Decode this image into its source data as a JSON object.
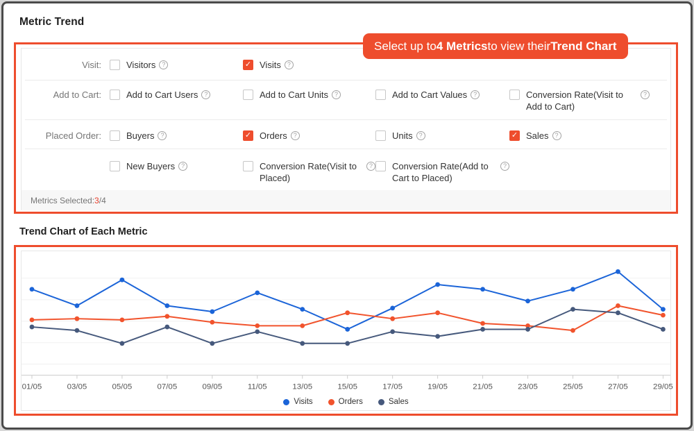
{
  "page": {
    "title": "Metric Trend",
    "chart_title": "Trend Chart of Each Metric"
  },
  "callout": {
    "segments": [
      {
        "text": "Select up to ",
        "bold": false
      },
      {
        "text": "4 Metrics",
        "bold": true
      },
      {
        "text": " to view their ",
        "bold": false
      },
      {
        "text": "Trend Chart",
        "bold": true
      }
    ]
  },
  "icons": {
    "checkmark": "✓",
    "help": "?"
  },
  "metric_selector": {
    "rows": [
      {
        "group_label": "Visit:",
        "cells": [
          {
            "label": "Visitors",
            "checked": false,
            "help": true
          },
          {
            "label": "Visits",
            "checked": true,
            "help": true
          },
          null,
          null
        ]
      },
      {
        "group_label": "Add to Cart:",
        "cells": [
          {
            "label": "Add to Cart Users",
            "checked": false,
            "help": true
          },
          {
            "label": "Add to Cart Units",
            "checked": false,
            "help": true
          },
          {
            "label": "Add to Cart Values",
            "checked": false,
            "help": true
          },
          {
            "label": "Conversion Rate(Visit to Add to Cart)",
            "checked": false,
            "help": true
          }
        ]
      },
      {
        "group_label": "Placed Order:",
        "cells": [
          {
            "label": "Buyers",
            "checked": false,
            "help": true
          },
          {
            "label": "Orders",
            "checked": true,
            "help": true
          },
          {
            "label": "Units",
            "checked": false,
            "help": true
          },
          {
            "label": "Sales",
            "checked": true,
            "help": true
          }
        ]
      },
      {
        "group_label": "",
        "cells": [
          {
            "label": "New Buyers",
            "checked": false,
            "help": true
          },
          {
            "label": "Conversion Rate(Visit to Placed)",
            "checked": false,
            "help": true
          },
          {
            "label": "Conversion Rate(Add to Cart to Placed)",
            "checked": false,
            "help": true
          },
          null
        ]
      }
    ],
    "footer": {
      "prefix": "Metrics Selected: ",
      "selected": "3",
      "suffix": "/4"
    }
  },
  "chart_data": {
    "type": "line",
    "title": "Trend Chart of Each Metric",
    "categories": [
      "01/05",
      "03/05",
      "05/05",
      "07/05",
      "09/05",
      "11/05",
      "13/05",
      "15/05",
      "17/05",
      "19/05",
      "21/05",
      "23/05",
      "25/05",
      "27/05",
      "29/05"
    ],
    "y_axis_visible": false,
    "ylim": [
      0,
      100
    ],
    "value_units": "relative scale (no y-axis labels shown in chart)",
    "grid": true,
    "legend_position": "bottom",
    "series": [
      {
        "name": "Visits",
        "color": "#1b64d8",
        "values": [
          73,
          59,
          81,
          59,
          54,
          70,
          56,
          39,
          57,
          77,
          73,
          63,
          73,
          88,
          56
        ]
      },
      {
        "name": "Orders",
        "color": "#f1532c",
        "values": [
          47,
          48,
          47,
          50,
          45,
          42,
          42,
          53,
          48,
          53,
          44,
          42,
          38,
          59,
          51
        ]
      },
      {
        "name": "Sales",
        "color": "#46597c",
        "values": [
          41,
          38,
          27,
          41,
          27,
          37,
          27,
          27,
          37,
          33,
          39,
          39,
          56,
          53,
          39
        ]
      }
    ]
  },
  "colors": {
    "accent": "#ee4d2d",
    "selected_count": "#e8402d",
    "frame_border": "#4a4a4a",
    "visits_line": "#1b64d8",
    "orders_line": "#f1532c",
    "sales_line": "#46597c",
    "gridline": "#f0f0f0",
    "axis_line": "#cccccc"
  }
}
